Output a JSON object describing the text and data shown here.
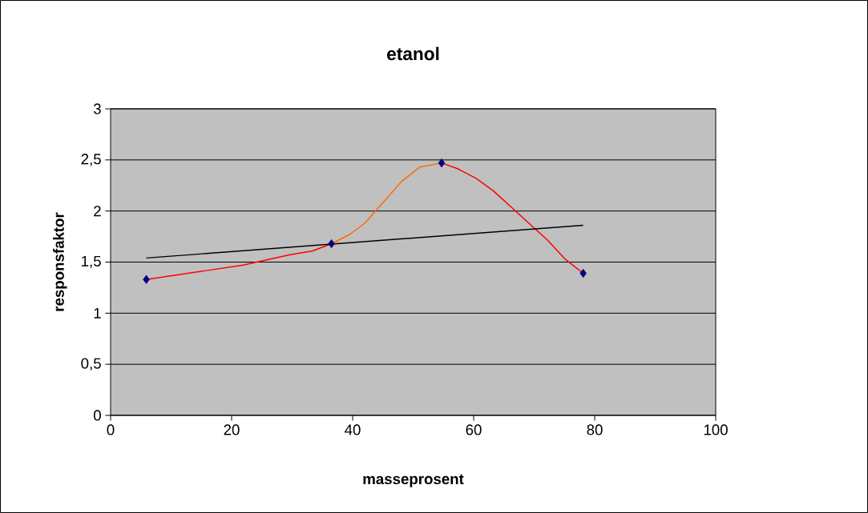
{
  "chart_data": {
    "type": "line",
    "title": "etanol",
    "xlabel": "masseprosent",
    "ylabel": "responsfaktor",
    "xlim": [
      0,
      100
    ],
    "xticks": [
      0,
      20,
      40,
      60,
      80,
      100
    ],
    "ylim": [
      0,
      3
    ],
    "yticks": [
      0,
      {
        "value": 0.5,
        "label": "0,5"
      },
      1,
      {
        "value": 1.5,
        "label": "1,5"
      },
      2,
      {
        "value": 2.5,
        "label": "2,5"
      },
      3
    ],
    "grid": "y",
    "series": [
      {
        "color": "#ff0000",
        "marker": "none",
        "x": [
          5.9,
          21.9,
          29.5,
          33.4,
          36.5
        ],
        "values": [
          1.33,
          1.47,
          1.57,
          1.61,
          1.68
        ]
      },
      {
        "color": "#ff6600",
        "marker": "none",
        "x": [
          36.5,
          39.5,
          42,
          48.1,
          51.1,
          54.7
        ],
        "values": [
          1.68,
          1.77,
          1.88,
          2.29,
          2.43,
          2.47
        ]
      },
      {
        "color": "#ff0000",
        "marker": "none",
        "x": [
          54.7,
          57.5,
          60.4,
          63.2,
          72.3,
          75.1,
          78.1
        ],
        "values": [
          2.47,
          2.41,
          2.32,
          2.2,
          1.71,
          1.53,
          1.39
        ]
      },
      {
        "color": "#000000",
        "marker": "none",
        "x": [
          5.9,
          78.1
        ],
        "values": [
          1.54,
          1.86
        ]
      },
      {
        "type": "scatter",
        "color": "#000080",
        "marker": "diamond",
        "x": [
          5.9,
          36.5,
          54.7,
          78.1
        ],
        "values": [
          1.33,
          1.68,
          2.47,
          1.39
        ]
      }
    ]
  }
}
